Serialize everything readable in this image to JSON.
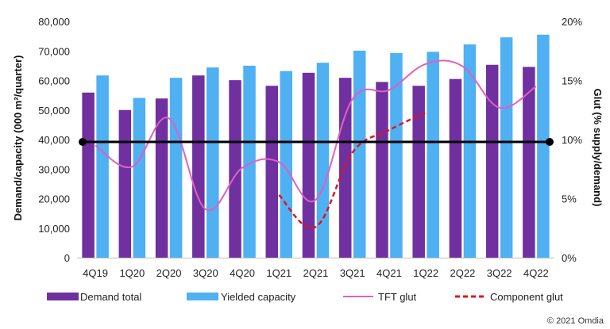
{
  "chart_data": {
    "type": "bar",
    "categories": [
      "4Q19",
      "1Q20",
      "2Q20",
      "3Q20",
      "4Q20",
      "1Q21",
      "2Q21",
      "3Q21",
      "4Q21",
      "1Q22",
      "2Q22",
      "3Q22",
      "4Q22"
    ],
    "series": [
      {
        "name": "Demand total",
        "type": "bar",
        "axis": "left",
        "color": "#7030a0",
        "values": [
          55900,
          50000,
          53900,
          61700,
          60100,
          58200,
          62600,
          60900,
          59500,
          58200,
          60500,
          65300,
          64600
        ]
      },
      {
        "name": "Yielded capacity",
        "type": "bar",
        "axis": "left",
        "color": "#4fb0f2",
        "values": [
          61700,
          54100,
          60900,
          64400,
          65000,
          63200,
          66000,
          70100,
          69300,
          69700,
          72200,
          74600,
          75500
        ]
      },
      {
        "name": "TFT glut",
        "type": "line",
        "axis": "right",
        "color": "#e15fc1",
        "values": [
          9.5,
          7.7,
          11.8,
          4.1,
          7.6,
          8.1,
          4.9,
          13.4,
          14.2,
          16.4,
          16.2,
          12.7,
          14.5
        ]
      },
      {
        "name": "Component glut",
        "type": "line",
        "axis": "right",
        "color": "#e3141b",
        "dashed": true,
        "values": [
          null,
          null,
          null,
          null,
          null,
          5.3,
          2.6,
          8.9,
          10.8,
          12.3,
          null,
          null,
          null
        ]
      }
    ],
    "y_left": {
      "label": "Demand/capacity (000 m²/quarter)",
      "min": 0,
      "max": 80000,
      "ticks": [
        "0",
        "10,000",
        "20,000",
        "30,000",
        "40,000",
        "50,000",
        "60,000",
        "70,000",
        "80,000"
      ]
    },
    "y_right": {
      "label": "Glut (% supply/demand)",
      "min": 0,
      "max": 20,
      "ticks": [
        "0%",
        "5%",
        "10%",
        "15%",
        "20%"
      ]
    },
    "reference_line": {
      "axis": "right",
      "value": 9.8,
      "color": "#000000"
    },
    "legend_position": "bottom",
    "grid": false
  },
  "legend": {
    "demand_total": "Demand total",
    "yielded_capacity": "Yielded capacity",
    "tft_glut": "TFT glut",
    "component_glut": "Component glut"
  },
  "copyright": "© 2021 Omdia"
}
